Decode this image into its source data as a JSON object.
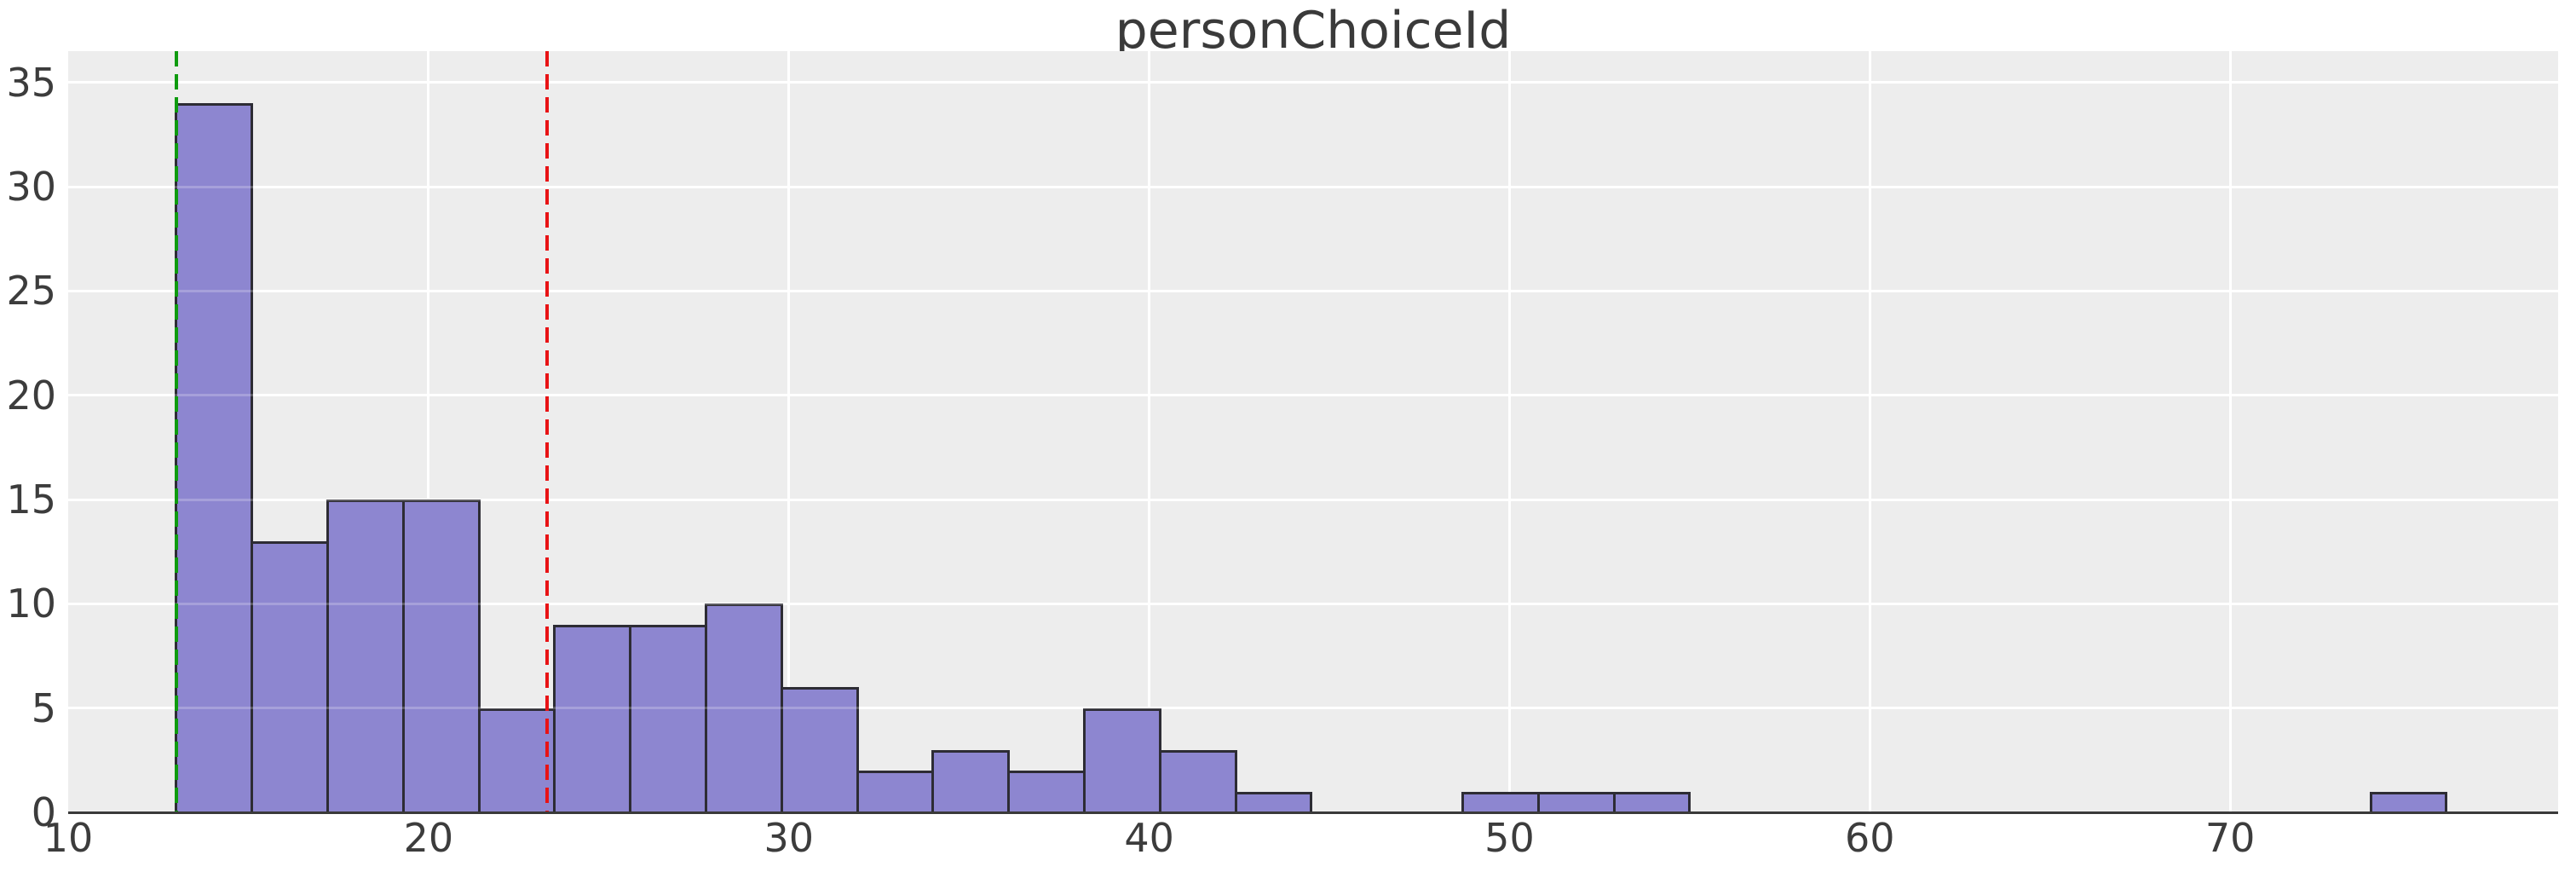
{
  "figure": {
    "title": "personChoiceId",
    "background": "#ffffff",
    "plot_background": "#ededed",
    "grid_color": "#ffffff",
    "tick_color": "#3c3c3c",
    "title_color": "#3a3a3a",
    "spine_color": "#3a3a3a"
  },
  "chart_data": {
    "type": "histogram",
    "title": "personChoiceId",
    "xlabel": "",
    "ylabel": "",
    "bar_fill": "#8d86d0",
    "bar_edge": "#2d2c34",
    "bin_edges": [
      13.0,
      15.1,
      17.2,
      19.3,
      21.4,
      23.5,
      25.6,
      27.7,
      29.8,
      31.9,
      34.0,
      36.1,
      38.2,
      40.3,
      42.4,
      44.5,
      46.6,
      48.7,
      50.8,
      52.9,
      55.0,
      57.1,
      59.2,
      61.3,
      63.4,
      65.5,
      67.6,
      69.7,
      71.8,
      73.9,
      76.0
    ],
    "counts": [
      34,
      13,
      15,
      15,
      5,
      9,
      9,
      10,
      6,
      2,
      3,
      2,
      5,
      3,
      1,
      0,
      0,
      1,
      1,
      1,
      0,
      0,
      0,
      0,
      0,
      0,
      0,
      0,
      0,
      1
    ],
    "total_observations": 136,
    "x_ticks": [
      10,
      20,
      30,
      40,
      50,
      60,
      70
    ],
    "y_ticks": [
      0,
      5,
      10,
      15,
      20,
      25,
      30,
      35
    ],
    "xlim": [
      10,
      79.1
    ],
    "ylim": [
      0,
      36.5
    ],
    "grid": true,
    "legend": null,
    "vlines": [
      {
        "name": "min-line",
        "x": 13.0,
        "color": "#0f9b0f",
        "style": "dashed"
      },
      {
        "name": "mean-line",
        "x": 23.3,
        "color": "#e81315",
        "style": "dashed"
      }
    ]
  }
}
